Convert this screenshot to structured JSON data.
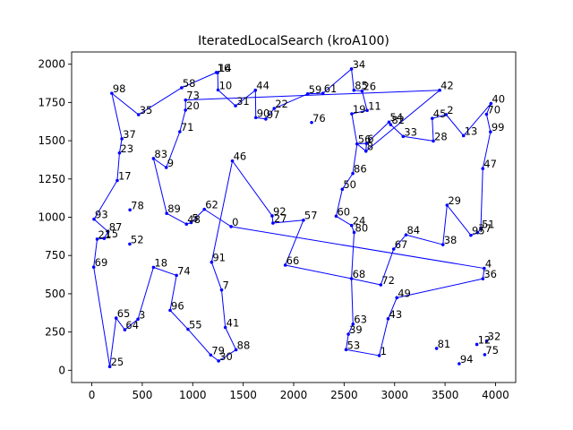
{
  "chart_data": {
    "type": "line",
    "title": "IteratedLocalSearch (kroA100)",
    "xlabel": "",
    "ylabel": "",
    "xlim": [
      -200,
      4200
    ],
    "ylim": [
      -80,
      2080
    ],
    "xticks": [
      0,
      500,
      1000,
      1500,
      2000,
      2500,
      3000,
      3500,
      4000
    ],
    "yticks": [
      0,
      250,
      500,
      750,
      1000,
      1250,
      1500,
      1750,
      2000
    ],
    "grid": false,
    "line_color": "#0000ff",
    "points": [
      {
        "label": "0",
        "x": 1380,
        "y": 939
      },
      {
        "label": "1",
        "x": 2848,
        "y": 96
      },
      {
        "label": "2",
        "x": 3510,
        "y": 1671
      },
      {
        "label": "3",
        "x": 457,
        "y": 334
      },
      {
        "label": "4",
        "x": 3888,
        "y": 666
      },
      {
        "label": "5",
        "x": 984,
        "y": 965
      },
      {
        "label": "6",
        "x": 2721,
        "y": 1482
      },
      {
        "label": "7",
        "x": 1286,
        "y": 525
      },
      {
        "label": "8",
        "x": 2716,
        "y": 1432
      },
      {
        "label": "9",
        "x": 738,
        "y": 1325
      },
      {
        "label": "10",
        "x": 1251,
        "y": 1832
      },
      {
        "label": "11",
        "x": 2728,
        "y": 1698
      },
      {
        "label": "12",
        "x": 3815,
        "y": 169
      },
      {
        "label": "13",
        "x": 3683,
        "y": 1533
      },
      {
        "label": "14",
        "x": 1247,
        "y": 1945
      },
      {
        "label": "15",
        "x": 123,
        "y": 862
      },
      {
        "label": "16",
        "x": 1234,
        "y": 1946
      },
      {
        "label": "17",
        "x": 252,
        "y": 1240
      },
      {
        "label": "18",
        "x": 611,
        "y": 673
      },
      {
        "label": "19",
        "x": 2576,
        "y": 1676
      },
      {
        "label": "20",
        "x": 928,
        "y": 1700
      },
      {
        "label": "21",
        "x": 53,
        "y": 857
      },
      {
        "label": "22",
        "x": 1807,
        "y": 1711
      },
      {
        "label": "23",
        "x": 274,
        "y": 1420
      },
      {
        "label": "24",
        "x": 2574,
        "y": 946
      },
      {
        "label": "25",
        "x": 178,
        "y": 24
      },
      {
        "label": "26",
        "x": 2678,
        "y": 1825
      },
      {
        "label": "27",
        "x": 1795,
        "y": 962
      },
      {
        "label": "28",
        "x": 3384,
        "y": 1498
      },
      {
        "label": "29",
        "x": 3520,
        "y": 1079
      },
      {
        "label": "30",
        "x": 1256,
        "y": 61
      },
      {
        "label": "31",
        "x": 1424,
        "y": 1728
      },
      {
        "label": "32",
        "x": 3913,
        "y": 192
      },
      {
        "label": "33",
        "x": 3085,
        "y": 1528
      },
      {
        "label": "34",
        "x": 2573,
        "y": 1969
      },
      {
        "label": "35",
        "x": 463,
        "y": 1670
      },
      {
        "label": "36",
        "x": 3875,
        "y": 598
      },
      {
        "label": "37",
        "x": 298,
        "y": 1513
      },
      {
        "label": "38",
        "x": 3479,
        "y": 821
      },
      {
        "label": "39",
        "x": 2542,
        "y": 236
      },
      {
        "label": "40",
        "x": 3955,
        "y": 1743
      },
      {
        "label": "41",
        "x": 1323,
        "y": 280
      },
      {
        "label": "42",
        "x": 3447,
        "y": 1830
      },
      {
        "label": "43",
        "x": 2936,
        "y": 337
      },
      {
        "label": "44",
        "x": 1621,
        "y": 1830
      },
      {
        "label": "45",
        "x": 3373,
        "y": 1646
      },
      {
        "label": "46",
        "x": 1393,
        "y": 1368
      },
      {
        "label": "47",
        "x": 3874,
        "y": 1318
      },
      {
        "label": "48",
        "x": 938,
        "y": 955
      },
      {
        "label": "49",
        "x": 3022,
        "y": 474
      },
      {
        "label": "50",
        "x": 2482,
        "y": 1183
      },
      {
        "label": "51",
        "x": 3854,
        "y": 923
      },
      {
        "label": "52",
        "x": 376,
        "y": 825
      },
      {
        "label": "53",
        "x": 2519,
        "y": 135
      },
      {
        "label": "54",
        "x": 2945,
        "y": 1622
      },
      {
        "label": "55",
        "x": 953,
        "y": 268
      },
      {
        "label": "56",
        "x": 2628,
        "y": 1479
      },
      {
        "label": "57",
        "x": 2097,
        "y": 981
      },
      {
        "label": "58",
        "x": 890,
        "y": 1846
      },
      {
        "label": "59",
        "x": 2139,
        "y": 1806
      },
      {
        "label": "60",
        "x": 2421,
        "y": 1007
      },
      {
        "label": "61",
        "x": 2290,
        "y": 1810
      },
      {
        "label": "62",
        "x": 1115,
        "y": 1052
      },
      {
        "label": "63",
        "x": 2588,
        "y": 302
      },
      {
        "label": "64",
        "x": 327,
        "y": 265
      },
      {
        "label": "65",
        "x": 241,
        "y": 341
      },
      {
        "label": "66",
        "x": 1917,
        "y": 687
      },
      {
        "label": "67",
        "x": 2991,
        "y": 792
      },
      {
        "label": "68",
        "x": 2573,
        "y": 599
      },
      {
        "label": "69",
        "x": 19,
        "y": 674
      },
      {
        "label": "70",
        "x": 3911,
        "y": 1673
      },
      {
        "label": "71",
        "x": 872,
        "y": 1559
      },
      {
        "label": "72",
        "x": 2863,
        "y": 558
      },
      {
        "label": "73",
        "x": 929,
        "y": 1766
      },
      {
        "label": "74",
        "x": 839,
        "y": 620
      },
      {
        "label": "75",
        "x": 3893,
        "y": 102
      },
      {
        "label": "76",
        "x": 2178,
        "y": 1619
      },
      {
        "label": "77",
        "x": 3822,
        "y": 899
      },
      {
        "label": "78",
        "x": 378,
        "y": 1048
      },
      {
        "label": "79",
        "x": 1178,
        "y": 100
      },
      {
        "label": "80",
        "x": 2599,
        "y": 901
      },
      {
        "label": "81",
        "x": 3416,
        "y": 143
      },
      {
        "label": "82",
        "x": 2961,
        "y": 1605
      },
      {
        "label": "83",
        "x": 611,
        "y": 1384
      },
      {
        "label": "84",
        "x": 3113,
        "y": 885
      },
      {
        "label": "85",
        "x": 2597,
        "y": 1830
      },
      {
        "label": "86",
        "x": 2586,
        "y": 1286
      },
      {
        "label": "87",
        "x": 161,
        "y": 906
      },
      {
        "label": "88",
        "x": 1429,
        "y": 134
      },
      {
        "label": "89",
        "x": 742,
        "y": 1025
      },
      {
        "label": "90",
        "x": 1625,
        "y": 1651
      },
      {
        "label": "91",
        "x": 1187,
        "y": 706
      },
      {
        "label": "92",
        "x": 1787,
        "y": 1009
      },
      {
        "label": "93",
        "x": 22,
        "y": 987
      },
      {
        "label": "94",
        "x": 3640,
        "y": 43
      },
      {
        "label": "95",
        "x": 3756,
        "y": 882
      },
      {
        "label": "96",
        "x": 776,
        "y": 392
      },
      {
        "label": "97",
        "x": 1724,
        "y": 1642
      },
      {
        "label": "98",
        "x": 198,
        "y": 1810
      },
      {
        "label": "99",
        "x": 3950,
        "y": 1558
      }
    ],
    "tour": [
      0,
      4,
      36,
      49,
      43,
      1,
      53,
      39,
      63,
      68,
      72,
      67,
      84,
      38,
      29,
      95,
      77,
      51,
      47,
      99,
      70,
      40,
      13,
      2,
      45,
      28,
      33,
      82,
      54,
      6,
      8,
      56,
      86,
      50,
      60,
      24,
      80,
      68,
      66,
      57,
      27,
      92,
      46,
      91,
      7,
      41,
      88,
      30,
      79,
      55,
      96,
      74,
      18,
      3,
      64,
      65,
      25,
      69,
      21,
      15,
      87,
      93,
      17,
      23,
      37,
      98,
      35,
      58,
      16,
      14,
      10,
      31,
      44,
      90,
      97,
      22,
      59,
      61,
      34,
      85,
      26,
      11,
      19,
      56,
      6,
      8,
      42,
      73,
      20,
      71,
      9,
      83,
      89,
      48,
      5,
      62,
      0
    ]
  }
}
